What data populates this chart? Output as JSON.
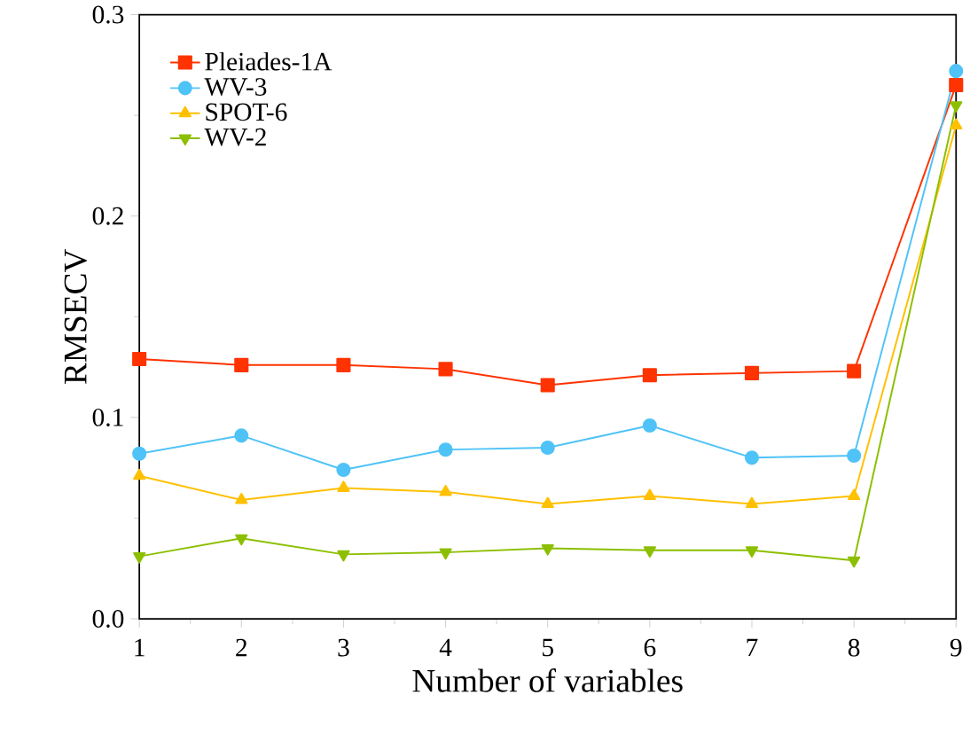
{
  "chart_data": {
    "type": "line",
    "xlabel": "Number of variables",
    "ylabel": "RMSECV",
    "x": [
      1,
      2,
      3,
      4,
      5,
      6,
      7,
      8,
      9
    ],
    "xlim": [
      1,
      9
    ],
    "xticks": [
      1,
      2,
      3,
      4,
      5,
      6,
      7,
      8,
      9
    ],
    "ylim": [
      0,
      0.3
    ],
    "yticks": [
      {
        "value": 0,
        "label": "0.0"
      },
      {
        "value": 0.1,
        "label": "0.1"
      },
      {
        "value": 0.2,
        "label": "0.2"
      },
      {
        "value": 0.3,
        "label": "0.3"
      }
    ],
    "legend": "top left",
    "grid": false,
    "series": [
      {
        "name": "Pleiades-1A",
        "color": "#ff3300",
        "marker": "square",
        "values": [
          0.129,
          0.126,
          0.126,
          0.124,
          0.116,
          0.121,
          0.122,
          0.123,
          0.265
        ]
      },
      {
        "name": "WV-3",
        "color": "#4fc3f7",
        "marker": "circle",
        "values": [
          0.082,
          0.091,
          0.074,
          0.084,
          0.085,
          0.096,
          0.08,
          0.081,
          0.272
        ]
      },
      {
        "name": "SPOT-6",
        "color": "#ffc000",
        "marker": "triangle",
        "values": [
          0.071,
          0.059,
          0.065,
          0.063,
          0.057,
          0.061,
          0.057,
          0.061,
          0.245
        ]
      },
      {
        "name": "WV-2",
        "color": "#8cbf00",
        "marker": "triangle-down",
        "values": [
          0.031,
          0.04,
          0.032,
          0.033,
          0.035,
          0.034,
          0.034,
          0.029,
          0.255
        ]
      }
    ]
  }
}
